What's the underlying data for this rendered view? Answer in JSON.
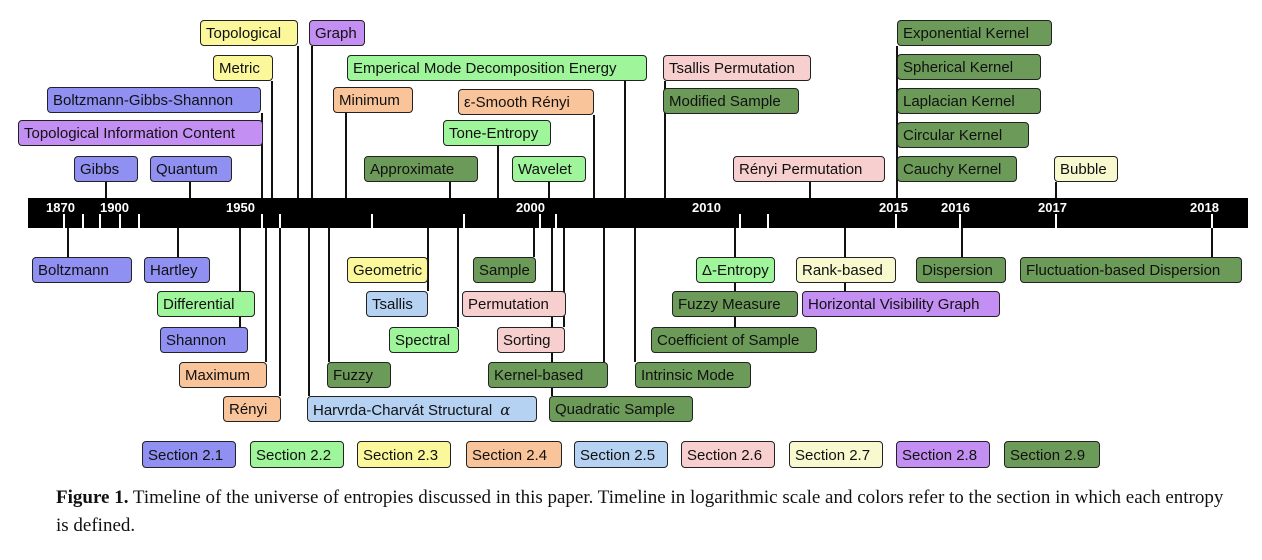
{
  "colors": {
    "s2_1": "#8f90f2",
    "s2_2": "#9ef59a",
    "s2_3": "#fbf79b",
    "s2_4": "#f9c499",
    "s2_5": "#b6d2f2",
    "s2_6": "#f8cfcf",
    "s2_7": "#f8f9cf",
    "s2_8": "#c38ff2",
    "s2_9": "#6c9a58"
  },
  "years": [
    "1870",
    "1900",
    "1950",
    "2000",
    "2010",
    "2015",
    "2016",
    "2017",
    "2018"
  ],
  "entropies_above": [
    {
      "id": "topological",
      "label": "Topological",
      "section": "s2_3"
    },
    {
      "id": "graph",
      "label": "Graph",
      "section": "s2_8"
    },
    {
      "id": "metric",
      "label": "Metric",
      "section": "s2_3"
    },
    {
      "id": "emd",
      "label": "Emperical Mode Decomposition Energy",
      "section": "s2_2"
    },
    {
      "id": "tsallis-permutation",
      "label": "Tsallis Permutation",
      "section": "s2_6"
    },
    {
      "id": "exponential-kernel",
      "label": "Exponential Kernel",
      "section": "s2_9"
    },
    {
      "id": "bgs",
      "label": "Boltzmann-Gibbs-Shannon",
      "section": "s2_1"
    },
    {
      "id": "minimum",
      "label": "Minimum",
      "section": "s2_4"
    },
    {
      "id": "smooth-renyi",
      "label": "ε-Smooth Rényi",
      "section": "s2_4"
    },
    {
      "id": "modified-sample",
      "label": "Modified Sample",
      "section": "s2_9"
    },
    {
      "id": "spherical-kernel",
      "label": "Spherical  Kernel",
      "section": "s2_9"
    },
    {
      "id": "topological-info",
      "label": "Topological Information Content",
      "section": "s2_8"
    },
    {
      "id": "tone-entropy",
      "label": "Tone-Entropy",
      "section": "s2_2"
    },
    {
      "id": "laplacian-kernel",
      "label": "Laplacian Kernel",
      "section": "s2_9"
    },
    {
      "id": "circular-kernel",
      "label": "Circular Kernel",
      "section": "s2_9"
    },
    {
      "id": "gibbs",
      "label": "Gibbs",
      "section": "s2_1"
    },
    {
      "id": "quantum",
      "label": "Quantum",
      "section": "s2_1"
    },
    {
      "id": "approximate",
      "label": "Approximate",
      "section": "s2_9"
    },
    {
      "id": "wavelet",
      "label": "Wavelet",
      "section": "s2_2"
    },
    {
      "id": "renyi-permutation",
      "label": "Rényi Permutation",
      "section": "s2_6"
    },
    {
      "id": "cauchy-kernel",
      "label": "Cauchy Kernel",
      "section": "s2_9"
    },
    {
      "id": "bubble",
      "label": "Bubble",
      "section": "s2_7"
    }
  ],
  "entropies_below": [
    {
      "id": "boltzmann",
      "label": "Boltzmann",
      "section": "s2_1"
    },
    {
      "id": "hartley",
      "label": "Hartley",
      "section": "s2_1"
    },
    {
      "id": "geometric",
      "label": "Geometric",
      "section": "s2_3"
    },
    {
      "id": "sample",
      "label": "Sample",
      "section": "s2_9"
    },
    {
      "id": "delta-entropy",
      "label": "Δ-Entropy",
      "section": "s2_2"
    },
    {
      "id": "rank-based",
      "label": "Rank-based",
      "section": "s2_7"
    },
    {
      "id": "dispersion",
      "label": "Dispersion",
      "section": "s2_9"
    },
    {
      "id": "fluctuation-dispersion",
      "label": "Fluctuation-based Dispersion",
      "section": "s2_9"
    },
    {
      "id": "differential",
      "label": "Differential",
      "section": "s2_2"
    },
    {
      "id": "tsallis",
      "label": "Tsallis",
      "section": "s2_5"
    },
    {
      "id": "permutation",
      "label": "Permutation",
      "section": "s2_6"
    },
    {
      "id": "fuzzy-measure",
      "label": "Fuzzy Measure",
      "section": "s2_9"
    },
    {
      "id": "hvg",
      "label": "Horizontal Visibility Graph",
      "section": "s2_8"
    },
    {
      "id": "shannon",
      "label": "Shannon",
      "section": "s2_1"
    },
    {
      "id": "spectral",
      "label": "Spectral",
      "section": "s2_2"
    },
    {
      "id": "sorting",
      "label": "Sorting",
      "section": "s2_6"
    },
    {
      "id": "coefficient-sample",
      "label": "Coefficient of Sample",
      "section": "s2_9"
    },
    {
      "id": "maximum",
      "label": "Maximum",
      "section": "s2_4"
    },
    {
      "id": "fuzzy",
      "label": "Fuzzy",
      "section": "s2_9"
    },
    {
      "id": "kernel-based",
      "label": "Kernel-based",
      "section": "s2_9"
    },
    {
      "id": "intrinsic-mode",
      "label": "Intrinsic Mode",
      "section": "s2_9"
    },
    {
      "id": "renyi",
      "label": "Rényi",
      "section": "s2_4"
    },
    {
      "id": "havrda",
      "label": "Harvrda-Charvát Structural",
      "section": "s2_5"
    },
    {
      "id": "quadratic-sample",
      "label": "Quadratic Sample",
      "section": "s2_9"
    }
  ],
  "havrda_symbol": "α",
  "legend": [
    {
      "label": "Section 2.1",
      "section": "s2_1"
    },
    {
      "label": "Section 2.2",
      "section": "s2_2"
    },
    {
      "label": "Section 2.3",
      "section": "s2_3"
    },
    {
      "label": "Section 2.4",
      "section": "s2_4"
    },
    {
      "label": "Section 2.5",
      "section": "s2_5"
    },
    {
      "label": "Section 2.6",
      "section": "s2_6"
    },
    {
      "label": "Section 2.7",
      "section": "s2_7"
    },
    {
      "label": "Section 2.8",
      "section": "s2_8"
    },
    {
      "label": "Section 2.9",
      "section": "s2_9"
    }
  ],
  "caption": {
    "label": "Figure 1.",
    "text": " Timeline of the universe of entropies discussed in this paper. Timeline in logarithmic scale and colors refer to the section in which each entropy is defined."
  }
}
